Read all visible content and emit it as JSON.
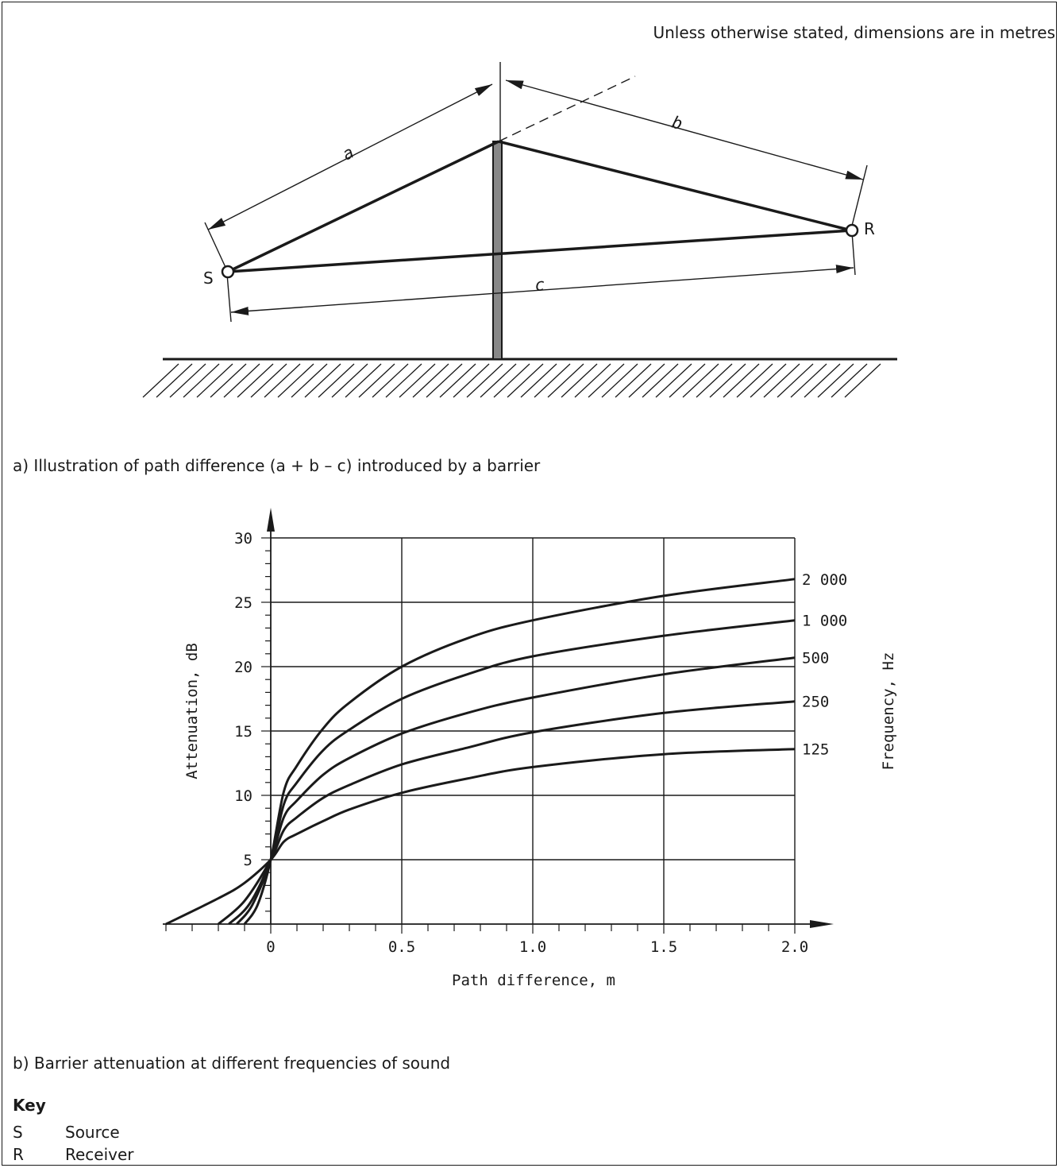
{
  "note": "Unless otherwise stated, dimensions are in metres",
  "diagram": {
    "caption": "a)  Illustration of path difference (a + b – c) introduced by a barrier",
    "labels": {
      "source": "S",
      "receiver": "R",
      "dim_a": "a",
      "dim_b": "b",
      "dim_c": "c"
    }
  },
  "chart_caption": "b)  Barrier attenuation at different frequencies of sound",
  "chart_data": {
    "type": "line",
    "xlabel": "Path difference, m",
    "ylabel": "Attenuation, dB",
    "right_label": "Frequency, Hz",
    "xlim": [
      -0.4,
      2.0
    ],
    "ylim": [
      0,
      30
    ],
    "x_ticks": [
      "0",
      "0.5",
      "1.0",
      "1.5",
      "2.0"
    ],
    "y_ticks": [
      "5",
      "10",
      "15",
      "20",
      "25",
      "30"
    ],
    "series": [
      {
        "name": "2 000",
        "x": [
          -0.1,
          -0.05,
          0,
          0.05,
          0.1,
          0.2,
          0.3,
          0.5,
          0.75,
          1.0,
          1.5,
          2.0
        ],
        "y": [
          0,
          1.5,
          5,
          10.3,
          12.3,
          15.2,
          17.2,
          20.0,
          22.2,
          23.6,
          25.5,
          26.8
        ]
      },
      {
        "name": "1 000",
        "x": [
          -0.13,
          -0.07,
          0,
          0.05,
          0.1,
          0.2,
          0.3,
          0.5,
          0.75,
          1.0,
          1.5,
          2.0
        ],
        "y": [
          0,
          1.5,
          5,
          9.3,
          11.0,
          13.5,
          15.1,
          17.5,
          19.4,
          20.8,
          22.4,
          23.6
        ]
      },
      {
        "name": "500",
        "x": [
          -0.16,
          -0.08,
          0,
          0.05,
          0.1,
          0.2,
          0.3,
          0.5,
          0.75,
          1.0,
          1.5,
          2.0
        ],
        "y": [
          0,
          1.6,
          5,
          8.3,
          9.6,
          11.6,
          12.9,
          14.8,
          16.4,
          17.6,
          19.4,
          20.7
        ]
      },
      {
        "name": "250",
        "x": [
          -0.2,
          -0.1,
          0,
          0.05,
          0.1,
          0.2,
          0.3,
          0.5,
          0.75,
          1.0,
          1.5,
          2.0
        ],
        "y": [
          0,
          1.8,
          5,
          7.3,
          8.3,
          9.8,
          10.8,
          12.4,
          13.7,
          14.9,
          16.4,
          17.3
        ]
      },
      {
        "name": "125",
        "x": [
          -0.4,
          -0.2,
          -0.1,
          0,
          0.05,
          0.1,
          0.2,
          0.3,
          0.5,
          0.75,
          1.0,
          1.5,
          2.0
        ],
        "y": [
          0,
          2.0,
          3.2,
          5,
          6.4,
          7.0,
          8.0,
          8.9,
          10.2,
          11.3,
          12.2,
          13.2,
          13.6
        ]
      }
    ]
  },
  "key": {
    "title": "Key",
    "items": [
      {
        "symbol": "S",
        "text": "Source"
      },
      {
        "symbol": "R",
        "text": "Receiver"
      }
    ]
  }
}
